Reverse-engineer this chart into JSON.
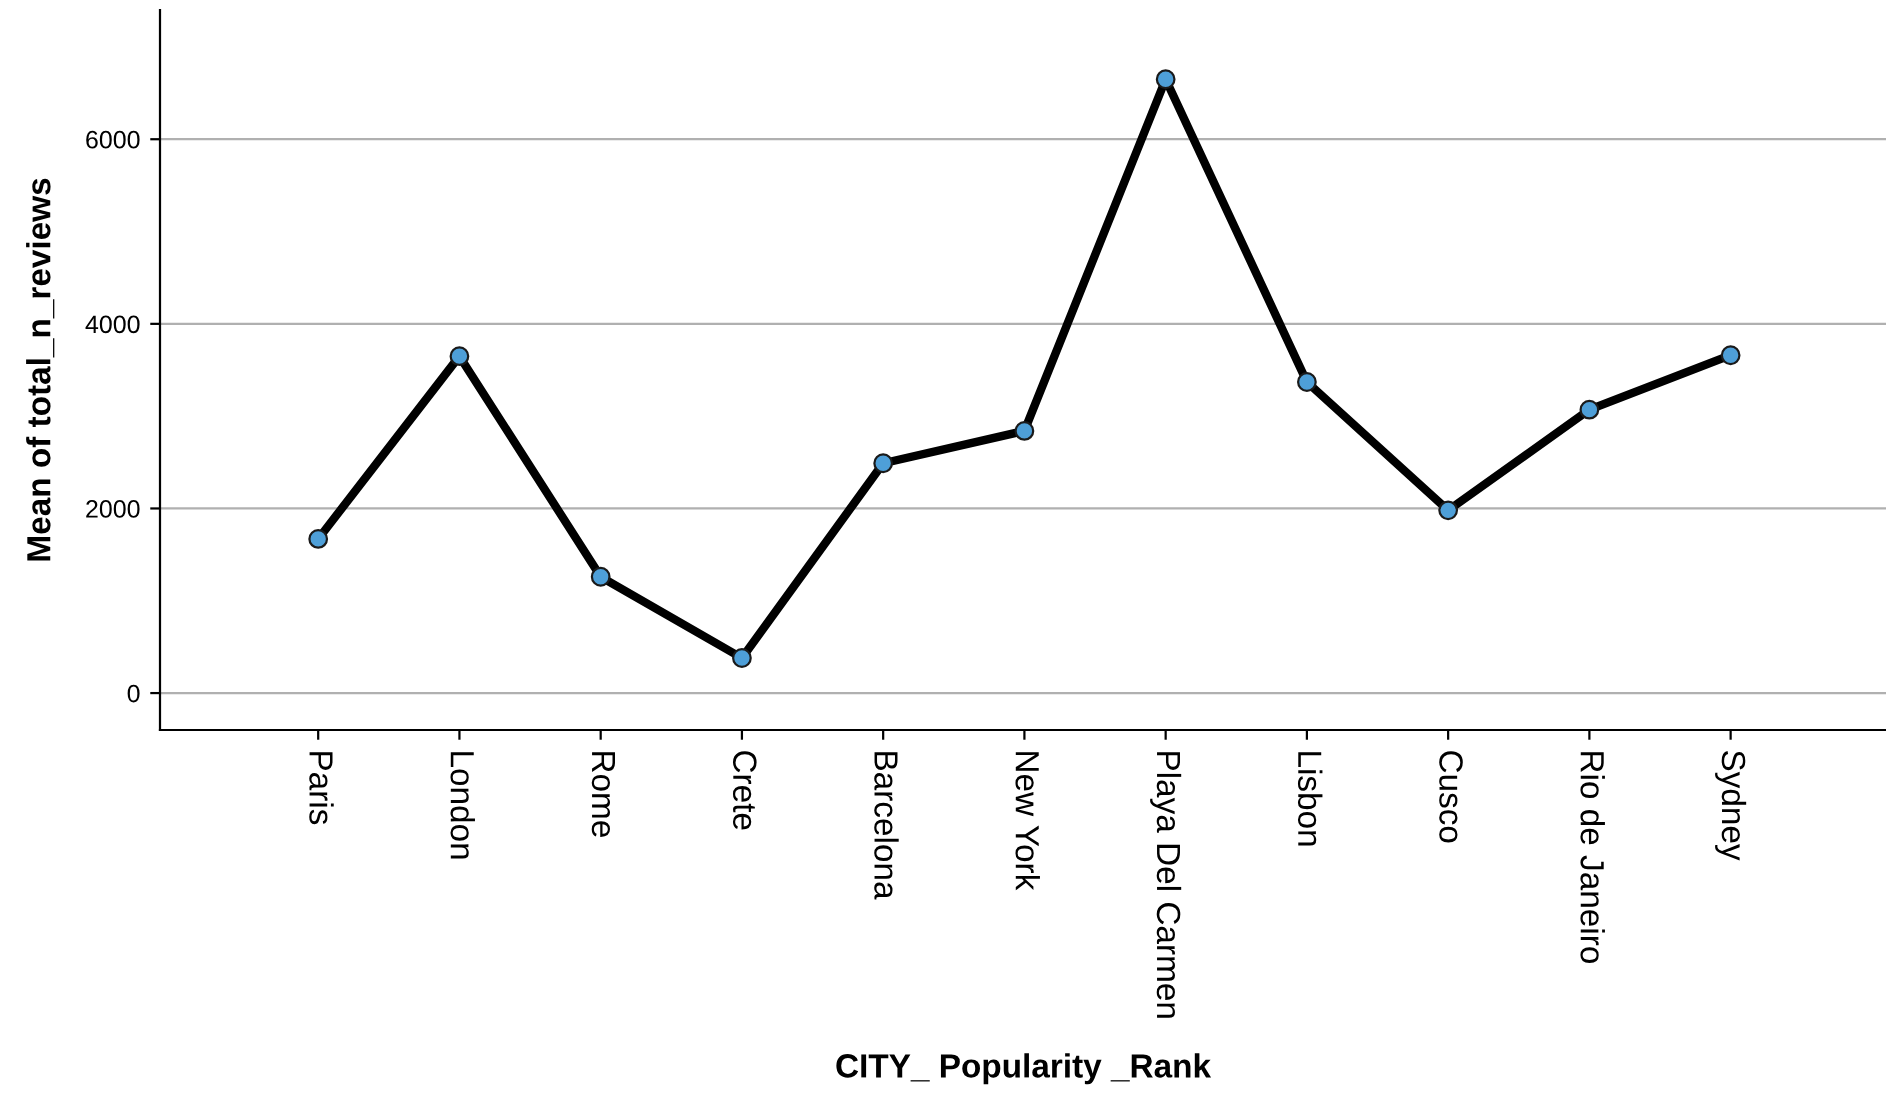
{
  "chart_data": {
    "type": "line",
    "xlabel": "CITY_ Popularity _Rank",
    "ylabel": "Mean of total_n_reviews",
    "categories": [
      "Paris",
      "London",
      "Rome",
      "Crete",
      "Barcelona",
      "New York",
      "Playa Del Carmen",
      "Lisbon",
      "Cusco",
      "Rio de Janeiro",
      "Sydney"
    ],
    "series": [
      {
        "color": "#000000",
        "colors": [
          "#4e9fd8",
          "#4e9fd8",
          "#4e9fd8",
          "#4e9fd8",
          "#4e9fd8",
          "#4e9fd8",
          "#4e9fd8",
          "#4e9fd8",
          "#4e9fd8",
          "#4e9fd8",
          "#4e9fd8"
        ],
        "values": [
          1670,
          3650,
          1260,
          380,
          2490,
          2840,
          6650,
          3370,
          1980,
          3070,
          3660
        ]
      }
    ],
    "ylim": [
      -400,
      7400
    ],
    "yticks": [
      0,
      2000,
      4000,
      6000
    ],
    "grid": "y",
    "marker": "circle",
    "line_style": "solid"
  }
}
